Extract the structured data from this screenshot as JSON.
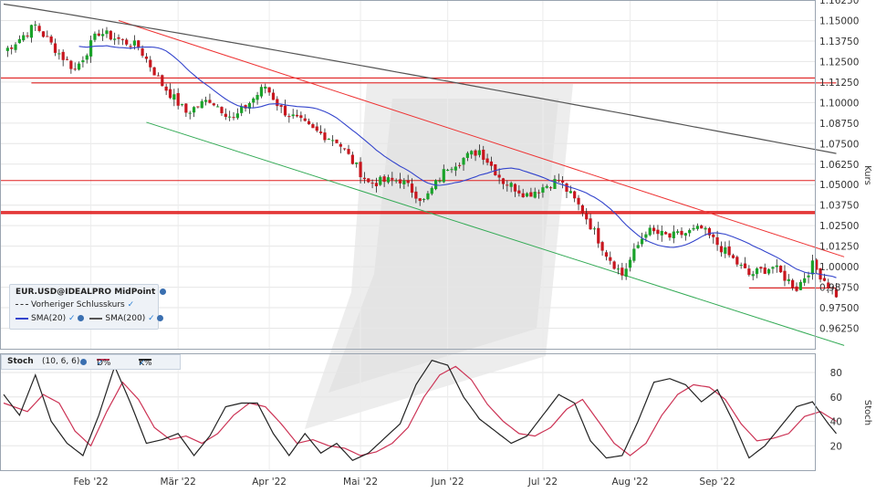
{
  "legend": {
    "instrument": "EUR.USD@IDEALPRO MidPoint",
    "prev_close": "Vorheriger Schlusskurs",
    "sma20": "SMA(20)",
    "sma200": "SMA(200)"
  },
  "stoch_header": {
    "title": "Stoch",
    "params": "(10, 6, 6)",
    "d_label": "D%",
    "k_label": "K%"
  },
  "colors": {
    "up": "#1aa32a",
    "down": "#c8161e",
    "sma20": "#3344cc",
    "sma200": "#555555",
    "upper_channel": "#ee3333",
    "lower_channel": "#33aa55",
    "hlines": "#e02020",
    "d_line": "#cc3355",
    "k_line": "#222222"
  },
  "chart_data": [
    {
      "type": "candlestick",
      "instrument": "EUR.USD@IDEALPRO MidPoint",
      "ylabel": "Kurs",
      "ylim": [
        0.95,
        1.1625
      ],
      "yticks": [
        "1.16250",
        "1.15000",
        "1.13750",
        "1.12500",
        "1.11250",
        "1.10000",
        "1.08750",
        "1.07500",
        "1.06250",
        "1.05000",
        "1.03750",
        "1.02500",
        "1.01250",
        "1.00000",
        "0.98750",
        "0.97500",
        "0.96250"
      ],
      "x_labels": [
        "Feb '22",
        "Mär '22",
        "Apr '22",
        "Mai '22",
        "Jun '22",
        "Jul '22",
        "Aug '22",
        "Sep '22"
      ],
      "x_label_index": [
        22,
        44,
        67,
        90,
        112,
        136,
        158,
        180
      ],
      "n_bars": 200,
      "sessions_shown": 190,
      "close_anchors": [
        [
          0,
          1.131
        ],
        [
          8,
          1.147
        ],
        [
          14,
          1.13
        ],
        [
          18,
          1.12
        ],
        [
          24,
          1.143
        ],
        [
          34,
          1.134
        ],
        [
          40,
          1.111
        ],
        [
          46,
          1.094
        ],
        [
          52,
          1.102
        ],
        [
          58,
          1.09
        ],
        [
          66,
          1.11
        ],
        [
          70,
          1.096
        ],
        [
          78,
          1.083
        ],
        [
          84,
          1.077
        ],
        [
          92,
          1.051
        ],
        [
          100,
          1.053
        ],
        [
          106,
          1.04
        ],
        [
          112,
          1.061
        ],
        [
          120,
          1.071
        ],
        [
          126,
          1.052
        ],
        [
          132,
          1.044
        ],
        [
          140,
          1.053
        ],
        [
          146,
          1.034
        ],
        [
          152,
          1.008
        ],
        [
          156,
          0.995
        ],
        [
          162,
          1.022
        ],
        [
          168,
          1.018
        ],
        [
          176,
          1.023
        ],
        [
          182,
          1.009
        ],
        [
          188,
          0.995
        ],
        [
          194,
          1.0
        ],
        [
          200,
          0.987
        ],
        [
          204,
          1.001
        ],
        [
          210,
          0.983
        ]
      ],
      "sma200_endpoints": [
        [
          0,
          1.16
        ],
        [
          210,
          1.069
        ]
      ],
      "horizontal_lines": [
        1.115,
        1.112,
        1.0525,
        1.0335,
        1.0325,
        0.987
      ],
      "upper_channel": [
        [
          29,
          1.15
        ],
        [
          212,
          1.006
        ]
      ],
      "lower_channel": [
        [
          36,
          1.088
        ],
        [
          212,
          0.952
        ]
      ]
    },
    {
      "type": "line",
      "title": "Stoch",
      "params": "(10, 6, 6)",
      "ylabel": "Stoch",
      "ylim": [
        0,
        95
      ],
      "yticks": [
        20,
        40,
        60,
        80
      ],
      "series": [
        {
          "name": "D%",
          "anchors": [
            [
              0,
              55
            ],
            [
              6,
              48
            ],
            [
              10,
              62
            ],
            [
              14,
              55
            ],
            [
              18,
              32
            ],
            [
              22,
              20
            ],
            [
              26,
              48
            ],
            [
              30,
              72
            ],
            [
              34,
              58
            ],
            [
              38,
              35
            ],
            [
              42,
              25
            ],
            [
              46,
              28
            ],
            [
              50,
              22
            ],
            [
              54,
              30
            ],
            [
              58,
              45
            ],
            [
              62,
              55
            ],
            [
              66,
              52
            ],
            [
              70,
              38
            ],
            [
              74,
              22
            ],
            [
              78,
              25
            ],
            [
              82,
              20
            ],
            [
              86,
              18
            ],
            [
              90,
              12
            ],
            [
              94,
              15
            ],
            [
              98,
              22
            ],
            [
              102,
              35
            ],
            [
              106,
              60
            ],
            [
              110,
              78
            ],
            [
              114,
              85
            ],
            [
              118,
              74
            ],
            [
              122,
              54
            ],
            [
              126,
              40
            ],
            [
              130,
              30
            ],
            [
              134,
              28
            ],
            [
              138,
              35
            ],
            [
              142,
              50
            ],
            [
              146,
              58
            ],
            [
              150,
              40
            ],
            [
              154,
              22
            ],
            [
              158,
              12
            ],
            [
              162,
              22
            ],
            [
              166,
              45
            ],
            [
              170,
              62
            ],
            [
              174,
              70
            ],
            [
              178,
              68
            ],
            [
              182,
              58
            ],
            [
              186,
              38
            ],
            [
              190,
              24
            ],
            [
              194,
              26
            ],
            [
              198,
              30
            ],
            [
              202,
              44
            ],
            [
              206,
              48
            ],
            [
              210,
              40
            ]
          ]
        },
        {
          "name": "K%",
          "anchors": [
            [
              0,
              62
            ],
            [
              4,
              45
            ],
            [
              8,
              78
            ],
            [
              12,
              40
            ],
            [
              16,
              22
            ],
            [
              20,
              12
            ],
            [
              24,
              45
            ],
            [
              28,
              85
            ],
            [
              32,
              55
            ],
            [
              36,
              22
            ],
            [
              40,
              25
            ],
            [
              44,
              30
            ],
            [
              48,
              12
            ],
            [
              52,
              28
            ],
            [
              56,
              52
            ],
            [
              60,
              55
            ],
            [
              64,
              55
            ],
            [
              68,
              30
            ],
            [
              72,
              12
            ],
            [
              76,
              30
            ],
            [
              80,
              14
            ],
            [
              84,
              22
            ],
            [
              88,
              8
            ],
            [
              92,
              14
            ],
            [
              96,
              26
            ],
            [
              100,
              38
            ],
            [
              104,
              70
            ],
            [
              108,
              90
            ],
            [
              112,
              86
            ],
            [
              116,
              60
            ],
            [
              120,
              42
            ],
            [
              124,
              32
            ],
            [
              128,
              22
            ],
            [
              132,
              28
            ],
            [
              136,
              45
            ],
            [
              140,
              62
            ],
            [
              144,
              55
            ],
            [
              148,
              24
            ],
            [
              152,
              10
            ],
            [
              156,
              12
            ],
            [
              160,
              40
            ],
            [
              164,
              72
            ],
            [
              168,
              75
            ],
            [
              172,
              70
            ],
            [
              176,
              56
            ],
            [
              180,
              66
            ],
            [
              184,
              40
            ],
            [
              188,
              10
            ],
            [
              192,
              20
            ],
            [
              196,
              36
            ],
            [
              200,
              52
            ],
            [
              204,
              56
            ],
            [
              208,
              38
            ],
            [
              210,
              30
            ]
          ]
        }
      ]
    }
  ]
}
